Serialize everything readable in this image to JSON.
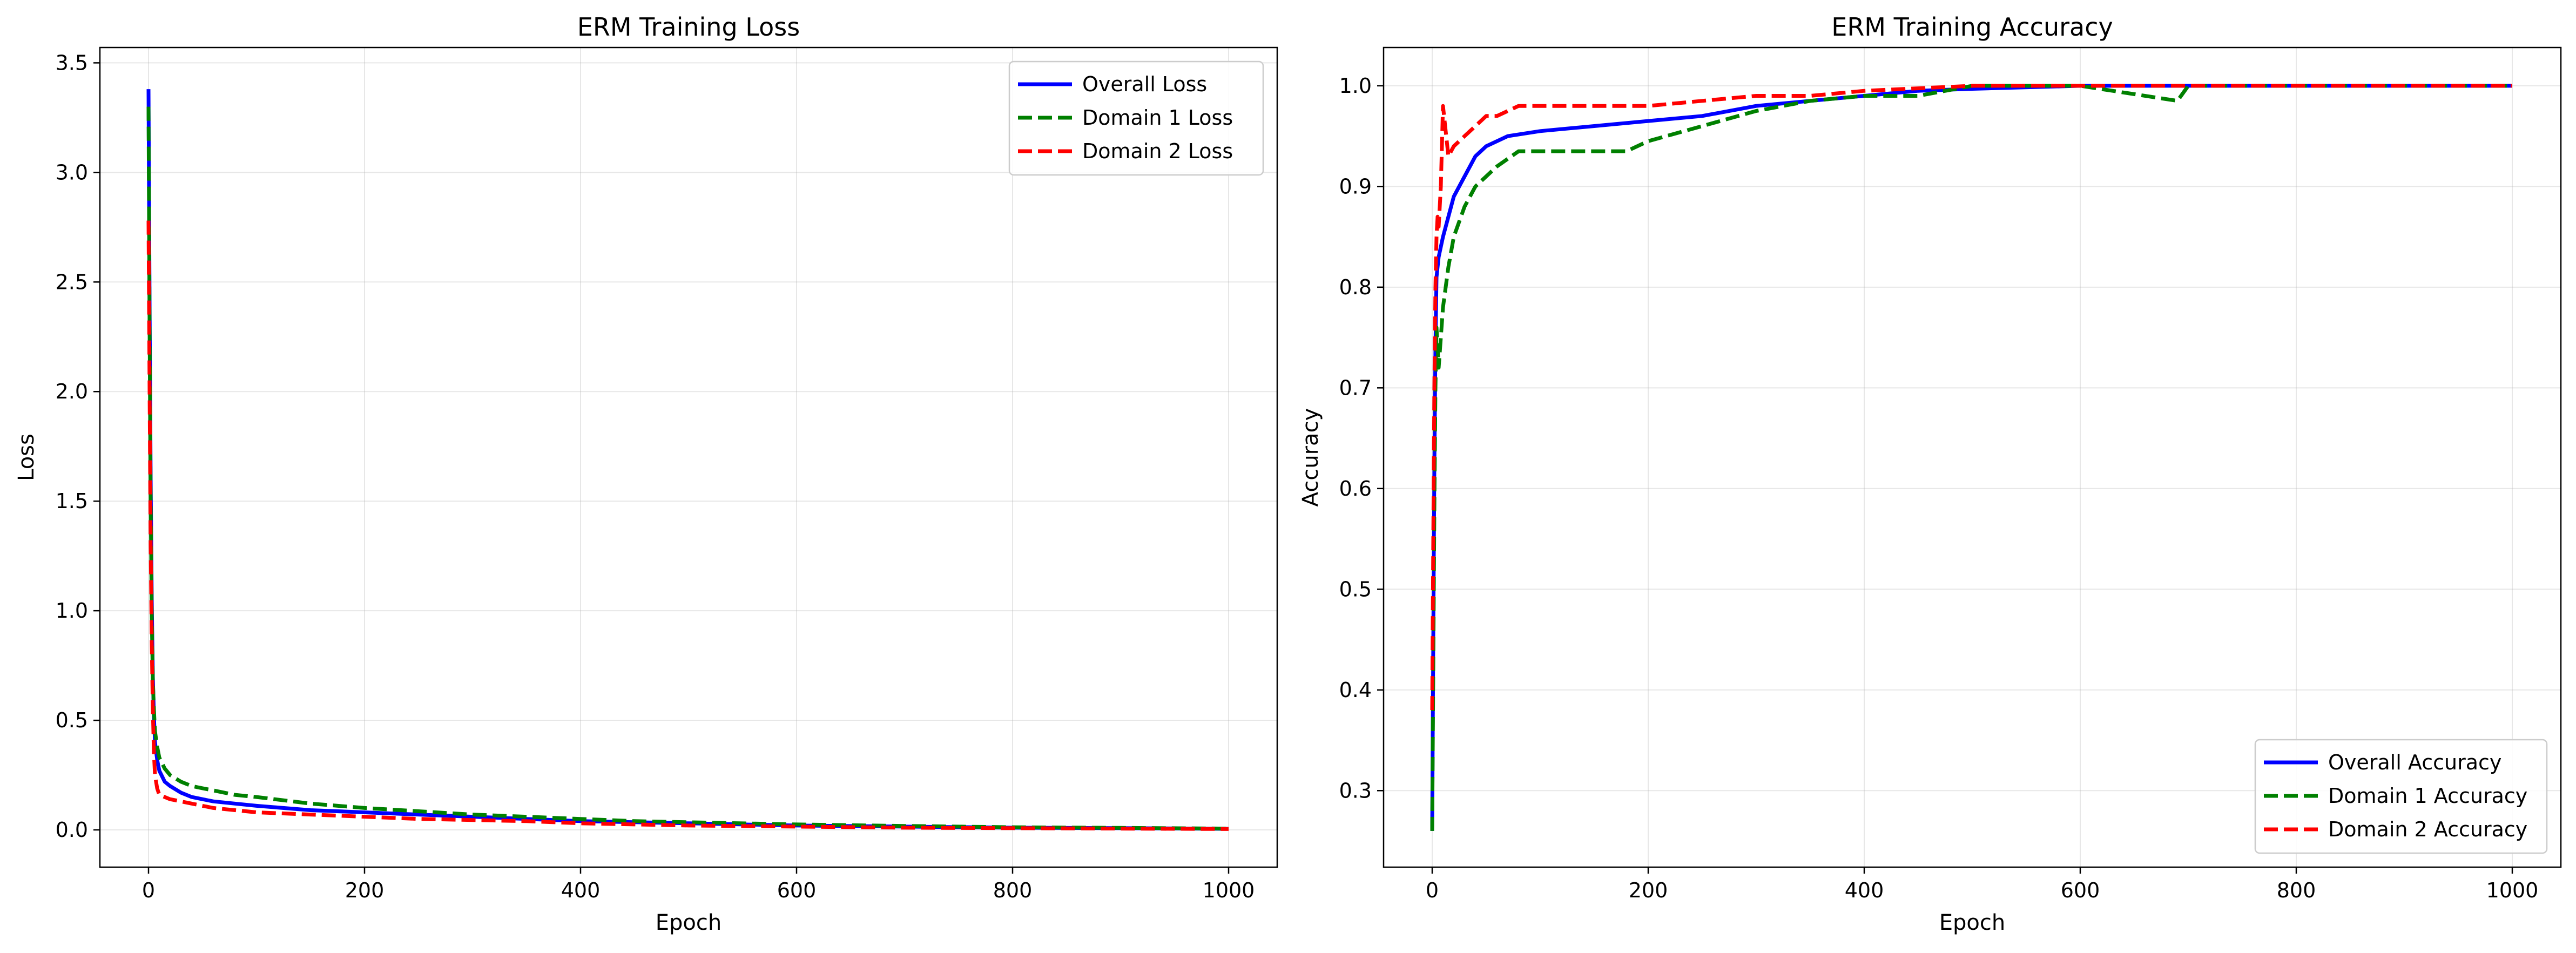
{
  "chart_data": [
    {
      "type": "line",
      "title": "ERM Training Loss",
      "xlabel": "Epoch",
      "ylabel": "Loss",
      "xlim": [
        -45,
        1045
      ],
      "ylim": [
        -0.17,
        3.57
      ],
      "xticks": [
        0,
        200,
        400,
        600,
        800,
        1000
      ],
      "yticks": [
        0.0,
        0.5,
        1.0,
        1.5,
        2.0,
        2.5,
        3.0,
        3.5
      ],
      "grid": true,
      "legend_position": "top-right",
      "series": [
        {
          "name": "Overall Loss",
          "color": "#0000ff",
          "dash": "solid",
          "x": [
            0,
            1,
            2,
            3,
            4,
            5,
            6,
            8,
            10,
            15,
            20,
            30,
            40,
            50,
            60,
            80,
            100,
            150,
            200,
            250,
            300,
            350,
            400,
            450,
            500,
            600,
            700,
            800,
            900,
            1000
          ],
          "y": [
            3.38,
            2.4,
            1.6,
            1.05,
            0.7,
            0.52,
            0.4,
            0.32,
            0.27,
            0.22,
            0.2,
            0.17,
            0.15,
            0.14,
            0.13,
            0.12,
            0.11,
            0.09,
            0.08,
            0.07,
            0.06,
            0.05,
            0.04,
            0.035,
            0.03,
            0.02,
            0.015,
            0.01,
            0.008,
            0.005
          ]
        },
        {
          "name": "Domain 1 Loss",
          "color": "#008000",
          "dash": "dashed",
          "x": [
            0,
            1,
            2,
            3,
            4,
            5,
            6,
            8,
            10,
            15,
            20,
            30,
            40,
            50,
            60,
            80,
            100,
            150,
            200,
            250,
            300,
            350,
            400,
            450,
            500,
            600,
            700,
            800,
            900,
            1000
          ],
          "y": [
            3.3,
            2.3,
            1.5,
            0.98,
            0.68,
            0.55,
            0.45,
            0.38,
            0.33,
            0.28,
            0.25,
            0.22,
            0.2,
            0.19,
            0.18,
            0.16,
            0.15,
            0.12,
            0.1,
            0.085,
            0.07,
            0.06,
            0.05,
            0.04,
            0.035,
            0.025,
            0.018,
            0.012,
            0.009,
            0.006
          ]
        },
        {
          "name": "Domain 2 Loss",
          "color": "#ff0000",
          "dash": "dashed",
          "x": [
            0,
            1,
            2,
            3,
            4,
            5,
            6,
            8,
            10,
            15,
            20,
            30,
            40,
            50,
            60,
            80,
            100,
            150,
            200,
            250,
            300,
            350,
            400,
            450,
            500,
            600,
            700,
            800,
            900,
            1000
          ],
          "y": [
            2.78,
            2.0,
            1.3,
            0.85,
            0.55,
            0.35,
            0.25,
            0.19,
            0.16,
            0.15,
            0.14,
            0.13,
            0.12,
            0.11,
            0.1,
            0.09,
            0.08,
            0.07,
            0.06,
            0.05,
            0.045,
            0.04,
            0.03,
            0.025,
            0.02,
            0.015,
            0.01,
            0.008,
            0.006,
            0.004
          ]
        }
      ]
    },
    {
      "type": "line",
      "title": "ERM Training Accuracy",
      "xlabel": "Epoch",
      "ylabel": "Accuracy",
      "xlim": [
        -45,
        1045
      ],
      "ylim": [
        0.224,
        1.038
      ],
      "xticks": [
        0,
        200,
        400,
        600,
        800,
        1000
      ],
      "yticks": [
        0.3,
        0.4,
        0.5,
        0.6,
        0.7,
        0.8,
        0.9,
        1.0
      ],
      "grid": true,
      "legend_position": "bottom-right",
      "series": [
        {
          "name": "Overall Accuracy",
          "color": "#0000ff",
          "dash": "solid",
          "x": [
            0,
            1,
            2,
            3,
            4,
            6,
            8,
            10,
            15,
            20,
            30,
            40,
            50,
            70,
            100,
            150,
            200,
            250,
            300,
            350,
            400,
            450,
            500,
            600,
            700,
            800,
            900,
            1000
          ],
          "y": [
            0.26,
            0.45,
            0.62,
            0.74,
            0.81,
            0.83,
            0.84,
            0.85,
            0.87,
            0.89,
            0.91,
            0.93,
            0.94,
            0.95,
            0.955,
            0.96,
            0.965,
            0.97,
            0.98,
            0.985,
            0.99,
            0.995,
            0.997,
            1.0,
            1.0,
            1.0,
            1.0,
            1.0
          ]
        },
        {
          "name": "Domain 1 Accuracy",
          "color": "#008000",
          "dash": "dashed",
          "x": [
            0,
            1,
            2,
            3,
            4,
            6,
            8,
            10,
            15,
            20,
            30,
            40,
            50,
            60,
            80,
            100,
            150,
            180,
            200,
            250,
            300,
            350,
            400,
            450,
            500,
            600,
            690,
            700,
            800,
            900,
            1000
          ],
          "y": [
            0.26,
            0.42,
            0.58,
            0.7,
            0.76,
            0.72,
            0.75,
            0.78,
            0.82,
            0.85,
            0.88,
            0.9,
            0.91,
            0.92,
            0.935,
            0.935,
            0.935,
            0.935,
            0.945,
            0.96,
            0.975,
            0.985,
            0.99,
            0.99,
            1.0,
            1.0,
            0.985,
            1.0,
            1.0,
            1.0,
            1.0
          ]
        },
        {
          "name": "Domain 2 Accuracy",
          "color": "#ff0000",
          "dash": "dashed",
          "x": [
            0,
            1,
            2,
            3,
            4,
            5,
            6,
            8,
            10,
            12,
            15,
            20,
            30,
            40,
            50,
            60,
            80,
            100,
            150,
            200,
            250,
            300,
            350,
            400,
            500,
            600,
            700,
            800,
            900,
            1000
          ],
          "y": [
            0.38,
            0.55,
            0.7,
            0.8,
            0.85,
            0.87,
            0.86,
            0.9,
            0.98,
            0.96,
            0.93,
            0.94,
            0.95,
            0.96,
            0.97,
            0.97,
            0.98,
            0.98,
            0.98,
            0.98,
            0.985,
            0.99,
            0.99,
            0.995,
            1.0,
            1.0,
            1.0,
            1.0,
            1.0,
            1.0
          ]
        }
      ]
    }
  ]
}
